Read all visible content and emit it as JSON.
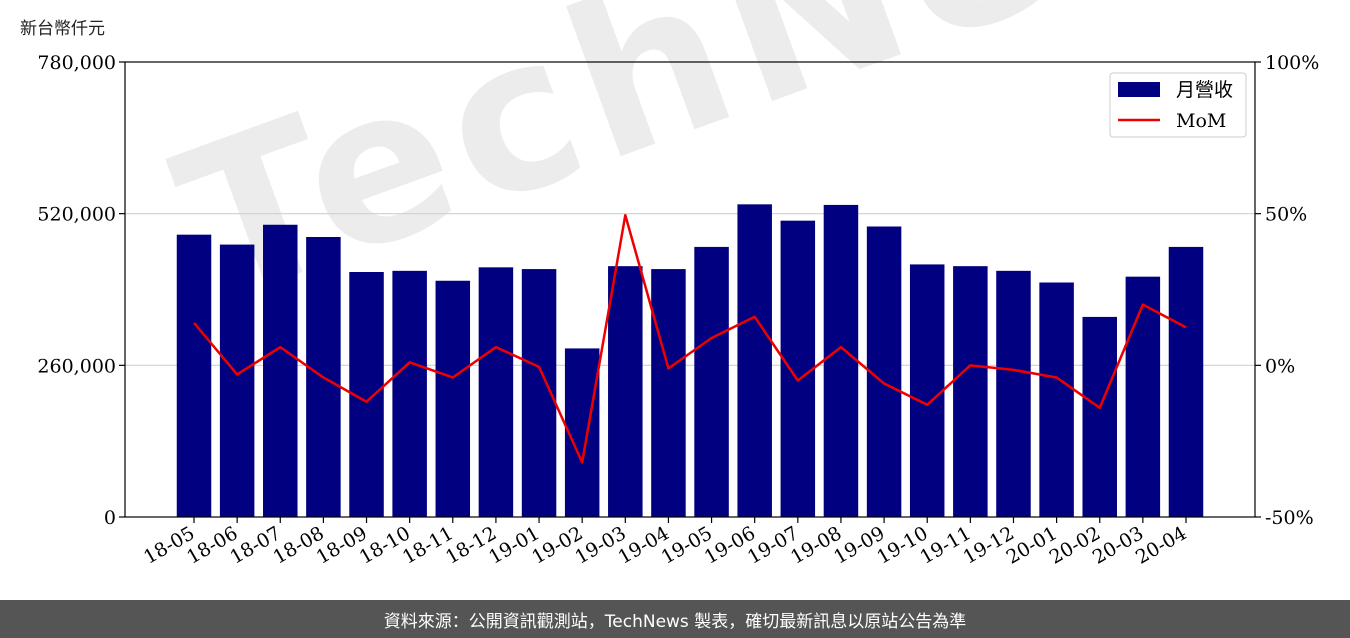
{
  "unit_label": "新台幣仟元",
  "footer_text": "資料來源：公開資訊觀測站，TechNews 製表，確切最新訊息以原站公告為準",
  "watermark_text": "TechNews",
  "chart_data": {
    "type": "bar+line",
    "categories": [
      "18-05",
      "18-06",
      "18-07",
      "18-08",
      "18-09",
      "18-10",
      "18-11",
      "18-12",
      "19-01",
      "19-02",
      "19-03",
      "19-04",
      "19-05",
      "19-06",
      "19-07",
      "19-08",
      "19-09",
      "19-10",
      "19-11",
      "19-12",
      "20-01",
      "20-02",
      "20-03",
      "20-04"
    ],
    "series": [
      {
        "name": "月營收",
        "type": "bar",
        "axis": "left",
        "color": "#000080",
        "values": [
          484000,
          467000,
          501000,
          480000,
          420000,
          422000,
          405000,
          428000,
          425000,
          289000,
          430000,
          425000,
          463000,
          536000,
          508000,
          535000,
          498000,
          433000,
          430000,
          422000,
          402000,
          343000,
          412000,
          463000
        ]
      },
      {
        "name": "MoM",
        "type": "line",
        "axis": "right",
        "color": "#ee0000",
        "values": [
          14,
          -3,
          6,
          -4,
          -12,
          1,
          -4,
          6,
          -0.5,
          -32,
          49.5,
          -1,
          9,
          16,
          -5,
          6,
          -6,
          -13,
          0,
          -1.5,
          -4,
          -14,
          20,
          12.5
        ]
      }
    ],
    "y_left": {
      "min": 0,
      "max": 780000,
      "ticks": [
        "0",
        "260,000",
        "520,000",
        "780,000"
      ],
      "tick_values": [
        0,
        260000,
        520000,
        780000
      ]
    },
    "y_right": {
      "min": -50,
      "max": 100,
      "ticks": [
        "-50%",
        "0%",
        "50%",
        "100%"
      ],
      "tick_values": [
        -50,
        0,
        50,
        100
      ]
    },
    "grid": "horizontal",
    "legend_position": "top-right"
  }
}
